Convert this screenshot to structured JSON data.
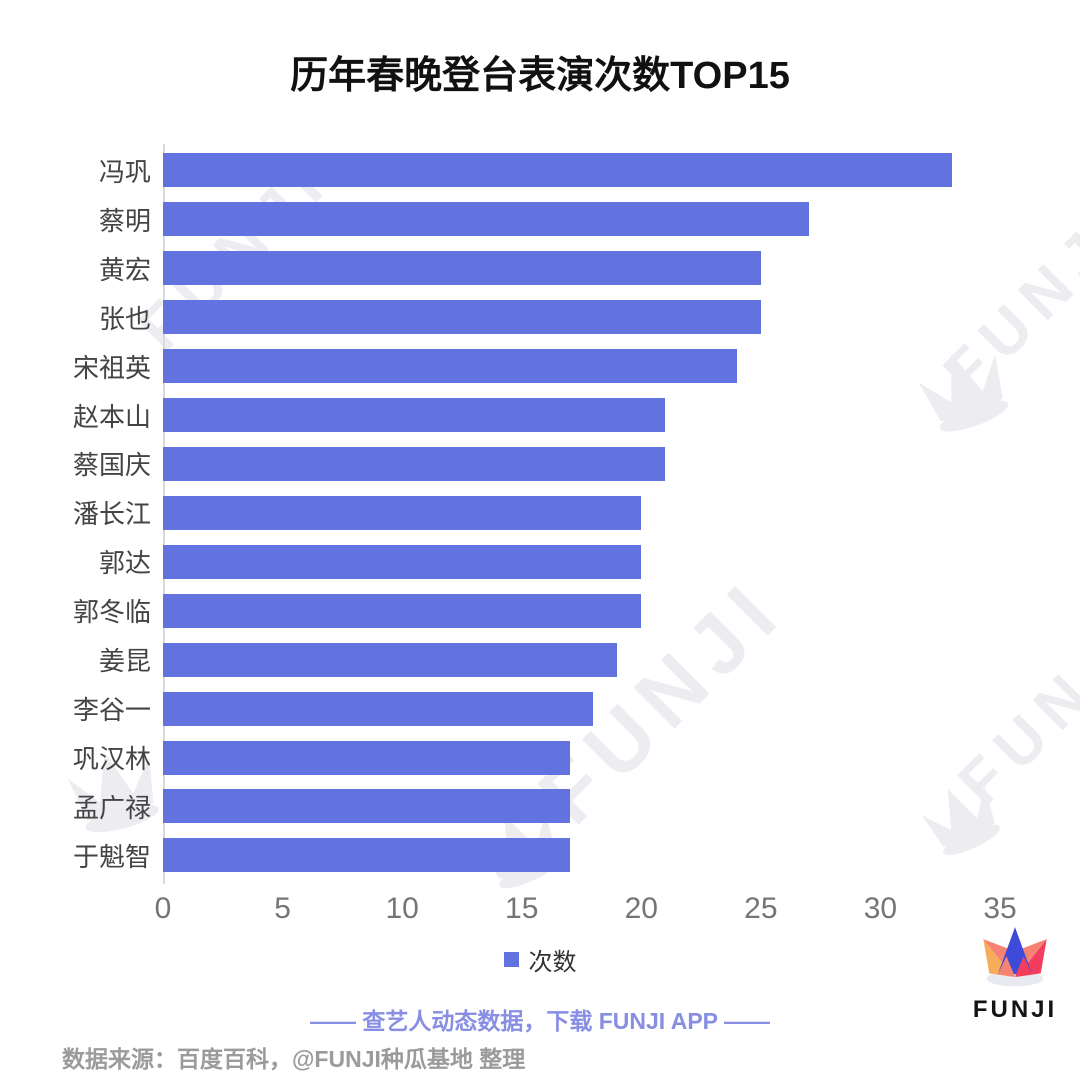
{
  "title": "历年春晚登台表演次数TOP15",
  "chart_data": {
    "type": "bar",
    "orientation": "horizontal",
    "title": "历年春晚登台表演次数TOP15",
    "categories": [
      "冯巩",
      "蔡明",
      "黄宏",
      "张也",
      "宋祖英",
      "赵本山",
      "蔡国庆",
      "潘长江",
      "郭达",
      "郭冬临",
      "姜昆",
      "李谷一",
      "巩汉林",
      "孟广禄",
      "于魁智"
    ],
    "values": [
      33,
      27,
      25,
      25,
      24,
      21,
      21,
      20,
      20,
      20,
      19,
      18,
      17,
      17,
      17
    ],
    "series_name": "次数",
    "xlim": [
      0,
      35
    ],
    "xticks": [
      0,
      5,
      10,
      15,
      20,
      25,
      30,
      35
    ],
    "grid": "off",
    "legend_position": "bottom",
    "bar_color": "#6272DE"
  },
  "legend": {
    "label": "次数"
  },
  "footer": {
    "tagline": "—— 查艺人动态数据，下载 FUNJI APP ——",
    "source": "数据来源：百度百科，@FUNJI种瓜基地 整理"
  },
  "logo": {
    "brand": "FUNJI"
  },
  "watermark": {
    "text": "FUNJI"
  },
  "colors": {
    "bar": "#6272DE",
    "tagline": "#878EE3",
    "source": "#9B9B9B",
    "axis": "#D9D9D9",
    "tick": "#757575",
    "label": "#444444",
    "wm": "#ECECF1",
    "logo_blue": "#3D4BD8",
    "logo_orange": "#F7AC59",
    "logo_salmon": "#F58273",
    "logo_red": "#F23D5E",
    "logo_base": "#E9E9F1"
  }
}
